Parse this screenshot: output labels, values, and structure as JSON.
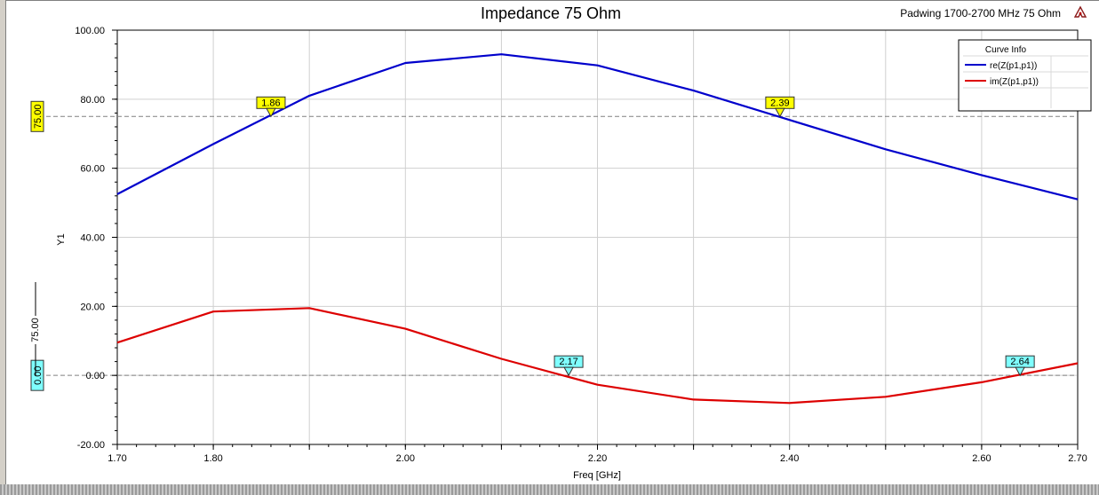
{
  "header": {
    "title": "Impedance 75 Ohm",
    "subtitle": "Padwing 1700-2700 MHz 75 Ohm",
    "logo_icon": "ansys-logo-icon"
  },
  "legend": {
    "title": "Curve Info",
    "placement": "top-right",
    "items": [
      "re(Z(p1,p1))",
      "im(Z(p1,p1))"
    ]
  },
  "colors": {
    "series1": "#0000cc",
    "series2": "#dd0000",
    "marker_yellow": "#ffff00",
    "marker_cyan": "#7fffff",
    "grid": "#d0d0d0",
    "refline": "#808080"
  },
  "chart_data": {
    "type": "line",
    "title": "Impedance 75 Ohm",
    "subtitle": "Padwing 1700-2700 MHz 75 Ohm",
    "xlabel": "Freq [GHz]",
    "ylabel": "Y1",
    "xlim": [
      1.7,
      2.7
    ],
    "ylim": [
      -20,
      100
    ],
    "grid": true,
    "legend_placement": "top-right",
    "x_ticks": [
      "1.70",
      "1.80",
      "1.90",
      "2.00",
      "2.10",
      "2.20",
      "2.30",
      "2.40",
      "2.50",
      "2.60",
      "2.70"
    ],
    "x_tick_labels": [
      "1.70",
      "1.80",
      "",
      "2.00",
      "",
      "2.20",
      "",
      "2.40",
      "",
      "2.60",
      "2.70"
    ],
    "y_ticks": [
      "-20.00",
      "0.00",
      "20.00",
      "40.00",
      "60.00",
      "80.00",
      "100.00"
    ],
    "x": [
      1.7,
      1.8,
      1.9,
      2.0,
      2.1,
      2.2,
      2.3,
      2.4,
      2.5,
      2.6,
      2.7
    ],
    "series": [
      {
        "name": "re(Z(p1,p1))",
        "color": "#0000cc",
        "values": [
          52.5,
          67.0,
          81.0,
          90.5,
          93.0,
          89.8,
          82.5,
          74.0,
          65.5,
          58.0,
          51.0
        ]
      },
      {
        "name": "im(Z(p1,p1))",
        "color": "#dd0000",
        "values": [
          9.5,
          18.5,
          19.5,
          13.5,
          4.8,
          -2.7,
          -7.0,
          -8.0,
          -6.2,
          -2.0,
          3.5
        ]
      }
    ],
    "reference_lines": [
      {
        "y": 75,
        "label": "75.00",
        "color": "#ffff00"
      },
      {
        "y": 0,
        "label": "0.00",
        "color": "#7fffff"
      }
    ],
    "markers": [
      {
        "x": 1.86,
        "y": 75,
        "label": "1.86",
        "color": "#ffff00"
      },
      {
        "x": 2.39,
        "y": 75,
        "label": "2.39",
        "color": "#ffff00"
      },
      {
        "x": 2.17,
        "y": 0,
        "label": "2.17",
        "color": "#7fffff"
      },
      {
        "x": 2.64,
        "y": 0,
        "label": "2.64",
        "color": "#7fffff"
      }
    ],
    "secondary_axis": {
      "label": "75.00"
    }
  }
}
